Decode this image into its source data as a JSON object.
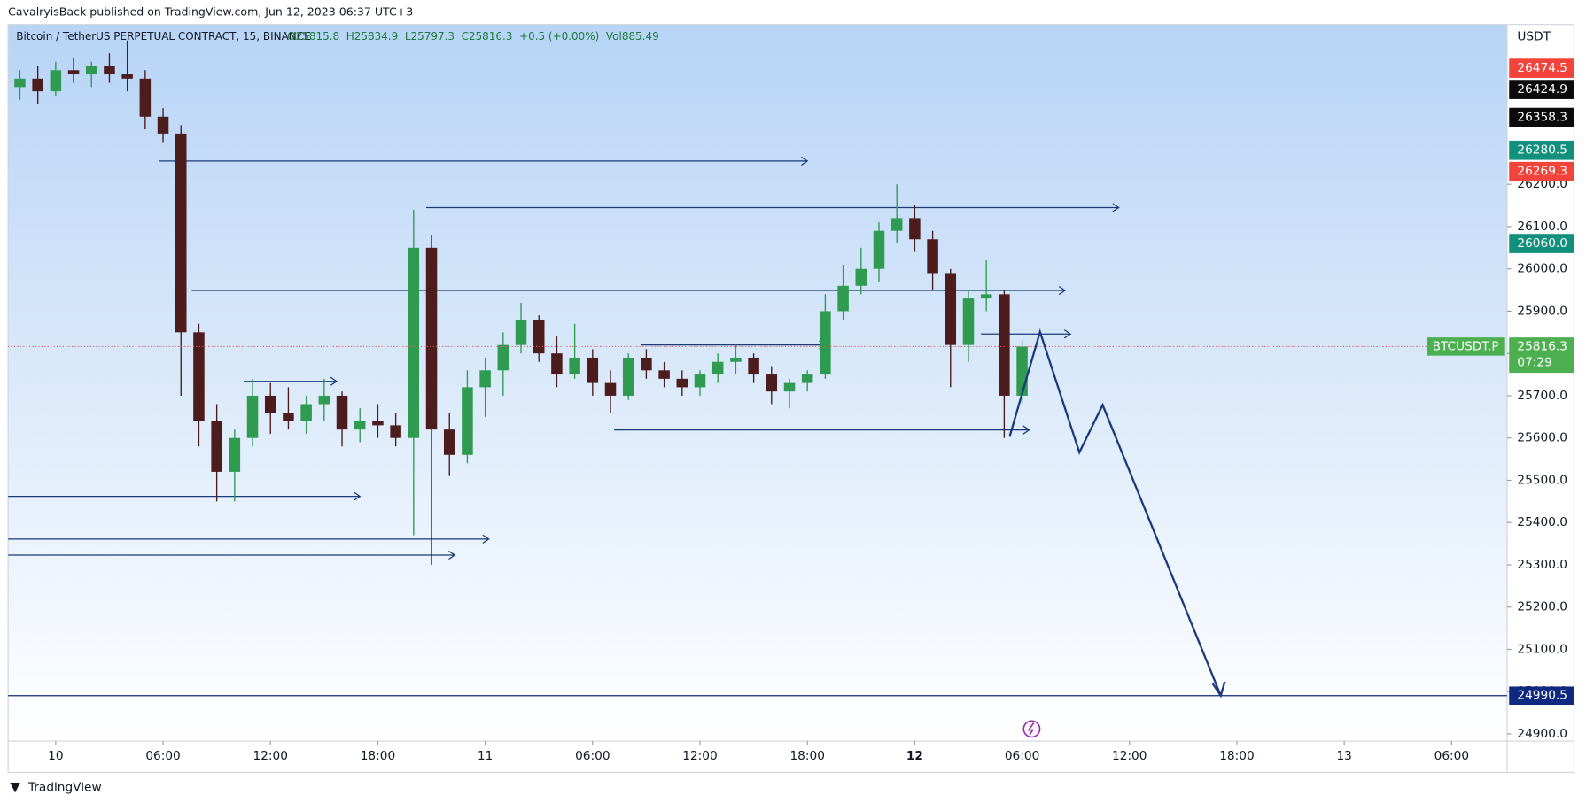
{
  "chart_data": {
    "type": "candlestick",
    "published": "CavalryisBack published on TradingView.com, Jun 12, 2023 06:37 UTC+3",
    "symbol": "Bitcoin / TetherUS PERPETUAL CONTRACT, 15, BINANCE",
    "ohlc_legend": "O25815.8  H25834.9  L25797.3  C25816.3  +0.5 (+0.00%)  Vol885.49",
    "y_unit": "USDT",
    "brand": "TradingView",
    "up_color": "#2e9b50",
    "down_color": "#4d1c1c",
    "x": [
      -2,
      -1,
      0,
      1,
      2,
      3,
      4,
      5,
      6,
      7,
      8,
      9,
      10,
      11,
      12,
      13,
      14,
      15,
      16,
      17,
      18,
      19,
      20,
      21,
      22,
      23,
      24,
      25,
      26,
      27,
      28,
      29,
      30,
      31,
      32,
      33,
      34,
      35,
      36,
      37,
      38,
      39,
      40,
      41,
      42,
      43,
      44,
      45,
      46,
      47,
      48,
      49,
      50,
      51,
      52,
      53,
      54
    ],
    "open": [
      26430,
      26450,
      26420,
      26470,
      26460,
      26480,
      26460,
      26450,
      26360,
      26320,
      25850,
      25640,
      25520,
      25600,
      25700,
      25660,
      25640,
      25680,
      25700,
      25620,
      25640,
      25630,
      25600,
      26050,
      25620,
      25560,
      25720,
      25760,
      25820,
      25880,
      25800,
      25750,
      25790,
      25730,
      25700,
      25790,
      25760,
      25740,
      25720,
      25750,
      25780,
      25790,
      25750,
      25710,
      25730,
      25750,
      25900,
      25960,
      26000,
      26090,
      26120,
      26070,
      25990,
      25820,
      25930,
      25940,
      25700
    ],
    "high": [
      26470,
      26480,
      26490,
      26500,
      26490,
      26510,
      26540,
      26470,
      26380,
      26340,
      25870,
      25680,
      25620,
      25740,
      25730,
      25720,
      25700,
      25740,
      25710,
      25670,
      25680,
      25660,
      26140,
      26080,
      25660,
      25760,
      25790,
      25850,
      25920,
      25890,
      25840,
      25870,
      25810,
      25760,
      25800,
      25810,
      25780,
      25760,
      25760,
      25800,
      25820,
      25800,
      25770,
      25740,
      25760,
      25940,
      26010,
      26050,
      26110,
      26200,
      26150,
      26090,
      26000,
      25950,
      26020,
      25950,
      25830
    ],
    "low": [
      26400,
      26390,
      26410,
      26440,
      26430,
      26440,
      26420,
      26330,
      26300,
      25700,
      25580,
      25450,
      25450,
      25580,
      25610,
      25620,
      25610,
      25640,
      25580,
      25590,
      25600,
      25580,
      25370,
      25300,
      25510,
      25540,
      25650,
      25700,
      25800,
      25780,
      25720,
      25740,
      25700,
      25660,
      25690,
      25740,
      25720,
      25700,
      25700,
      25730,
      25750,
      25730,
      25680,
      25670,
      25710,
      25740,
      25880,
      25940,
      25970,
      26060,
      26040,
      25950,
      25720,
      25780,
      25900,
      25600,
      25680
    ],
    "close": [
      26450,
      26420,
      26470,
      26460,
      26480,
      26460,
      26450,
      26360,
      26320,
      25850,
      25640,
      25520,
      25600,
      25700,
      25660,
      25640,
      25680,
      25700,
      25620,
      25640,
      25630,
      25600,
      26050,
      25620,
      25560,
      25720,
      25760,
      25820,
      25880,
      25800,
      25750,
      25790,
      25730,
      25700,
      25790,
      25760,
      25740,
      25720,
      25750,
      25780,
      25790,
      25750,
      25710,
      25730,
      25750,
      25900,
      25960,
      26000,
      26090,
      26120,
      26070,
      25990,
      25820,
      25930,
      25940,
      25700,
      25816.3
    ],
    "xlim": [
      -2.66,
      81.1
    ],
    "xticks": [
      {
        "value": 0,
        "label": "10"
      },
      {
        "value": 6,
        "label": "06:00"
      },
      {
        "value": 12,
        "label": "12:00"
      },
      {
        "value": 18,
        "label": "18:00"
      },
      {
        "value": 24,
        "label": "11"
      },
      {
        "value": 30,
        "label": "06:00"
      },
      {
        "value": 36,
        "label": "12:00"
      },
      {
        "value": 42,
        "label": "18:00"
      },
      {
        "value": 48,
        "label": "12"
      },
      {
        "value": 54,
        "label": "06:00"
      },
      {
        "value": 60,
        "label": "12:00"
      },
      {
        "value": 66,
        "label": "18:00"
      },
      {
        "value": 72,
        "label": "13"
      },
      {
        "value": 78,
        "label": "06:00"
      }
    ],
    "ylim": [
      24883,
      26578
    ],
    "yticks": [
      {
        "value": 24900,
        "label": "24900.0"
      },
      {
        "value": 25000,
        "label": "25000.0"
      },
      {
        "value": 25100,
        "label": "25100.0"
      },
      {
        "value": 25200,
        "label": "25200.0"
      },
      {
        "value": 25300,
        "label": "25300.0"
      },
      {
        "value": 25400,
        "label": "25400.0"
      },
      {
        "value": 25500,
        "label": "25500.0"
      },
      {
        "value": 25600,
        "label": "25600.0"
      },
      {
        "value": 25700,
        "label": "25700.0"
      },
      {
        "value": 25800,
        "label": "25800.0"
      },
      {
        "value": 25900,
        "label": "25900.0"
      },
      {
        "value": 26000,
        "label": "26000.0"
      },
      {
        "value": 26100,
        "label": "26100.0"
      },
      {
        "value": 26200,
        "label": "26200.0"
      }
    ],
    "grid": false,
    "level_color": "#1a3a7a",
    "levels": [
      {
        "price": 26255,
        "from": 5.8,
        "to": 42
      },
      {
        "price": 26145,
        "from": 20.7,
        "to": 59.4
      },
      {
        "price": 25949,
        "from": 7.6,
        "to": 56.4
      },
      {
        "price": 25846,
        "from": 51.7,
        "to": 56.7
      },
      {
        "price": 25820,
        "from": 32.7,
        "to": 43
      },
      {
        "price": 25734,
        "from": 10.5,
        "to": 15.7
      },
      {
        "price": 25619,
        "from": 31.2,
        "to": 54.4
      },
      {
        "price": 25462,
        "from": -2.66,
        "to": 17
      },
      {
        "price": 25361,
        "from": -2.66,
        "to": 24.2
      },
      {
        "price": 25323,
        "from": -2.66,
        "to": 22.3
      }
    ],
    "target_line": {
      "price": 24990.5,
      "label": "24990.5",
      "color": "#0d2a80"
    },
    "projection": {
      "x": [
        53.3,
        55.0,
        57.2,
        58.5,
        65.1
      ],
      "y": [
        25603,
        25851,
        25566,
        25678,
        24990.5
      ],
      "color": "#1a3a7a"
    },
    "price_tags": [
      {
        "value": 26474.5,
        "label": "26474.5",
        "color": "#f2443a"
      },
      {
        "value": 26424.9,
        "label": "26424.9",
        "color": "#0b0b0b"
      },
      {
        "value": 26358.3,
        "label": "26358.3",
        "color": "#0b0b0b"
      },
      {
        "value": 26280.5,
        "label": "26280.5",
        "color": "#12907e"
      },
      {
        "value": 26269.3,
        "label": "26269.3",
        "color": "#f2443a"
      },
      {
        "value": 26060.0,
        "label": "26060.0",
        "color": "#12907e"
      }
    ],
    "current": {
      "value": 25816.3,
      "label": "25816.3",
      "symbol": "BTCUSDT.P",
      "countdown": "07:29",
      "color": "#4caf50"
    }
  }
}
